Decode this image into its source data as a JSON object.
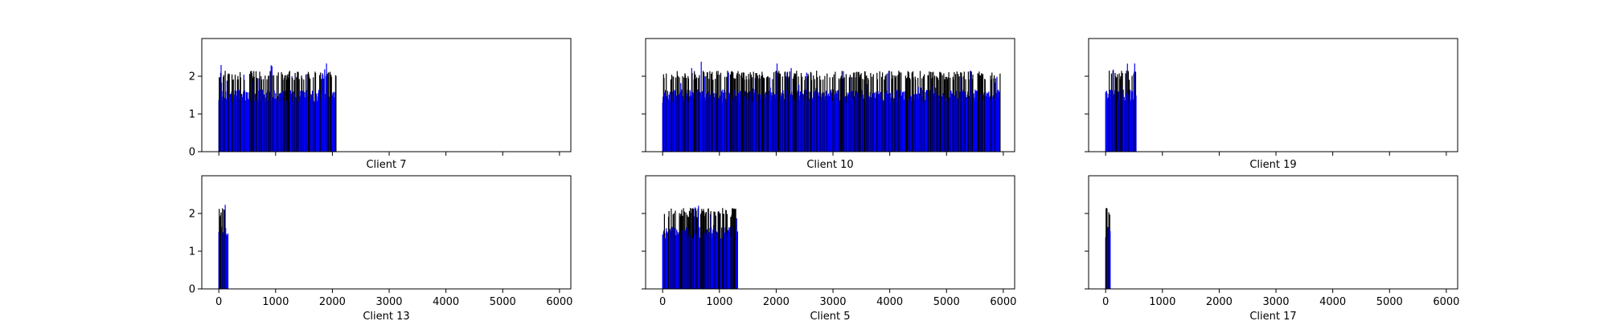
{
  "chart_data": [
    {
      "type": "bar",
      "title": "",
      "xlabel": "Client 7",
      "ylabel": "",
      "xlim": [
        -300,
        6200
      ],
      "ylim": [
        0,
        3
      ],
      "x_max": 2070,
      "series_colors": [
        "#000000",
        "#0000ff"
      ],
      "xticks": [
        0,
        1000,
        2000,
        3000,
        4000,
        5000,
        6000
      ],
      "yticks": [
        0,
        1,
        2
      ],
      "xtick_labels": [],
      "ytick_labels": [
        "0",
        "1",
        "2"
      ],
      "grid": false,
      "legend": "none"
    },
    {
      "type": "bar",
      "title": "",
      "xlabel": "Client 10",
      "ylabel": "",
      "xlim": [
        -300,
        6200
      ],
      "ylim": [
        0,
        3
      ],
      "x_max": 5950,
      "series_colors": [
        "#000000",
        "#0000ff"
      ],
      "xticks": [
        0,
        1000,
        2000,
        3000,
        4000,
        5000,
        6000
      ],
      "yticks": [
        0,
        1,
        2
      ],
      "xtick_labels": [],
      "ytick_labels": [],
      "grid": false,
      "legend": "none"
    },
    {
      "type": "bar",
      "title": "",
      "xlabel": "Client 19",
      "ylabel": "",
      "xlim": [
        -300,
        6200
      ],
      "ylim": [
        0,
        3
      ],
      "x_max": 540,
      "series_colors": [
        "#000000",
        "#0000ff"
      ],
      "xticks": [
        0,
        1000,
        2000,
        3000,
        4000,
        5000,
        6000
      ],
      "yticks": [
        0,
        1,
        2
      ],
      "xtick_labels": [],
      "ytick_labels": [],
      "grid": false,
      "legend": "none"
    },
    {
      "type": "bar",
      "title": "",
      "xlabel": "Client 13",
      "ylabel": "",
      "xlim": [
        -300,
        6200
      ],
      "ylim": [
        0,
        3
      ],
      "x_max": 160,
      "series_colors": [
        "#000000",
        "#0000ff"
      ],
      "xticks": [
        0,
        1000,
        2000,
        3000,
        4000,
        5000,
        6000
      ],
      "yticks": [
        0,
        1,
        2
      ],
      "xtick_labels": [
        "0",
        "1000",
        "2000",
        "3000",
        "4000",
        "5000",
        "6000"
      ],
      "ytick_labels": [
        "0",
        "1",
        "2"
      ],
      "grid": false,
      "legend": "none"
    },
    {
      "type": "bar",
      "title": "",
      "xlabel": "Client 5",
      "ylabel": "",
      "xlim": [
        -300,
        6200
      ],
      "ylim": [
        0,
        3
      ],
      "x_max": 1320,
      "series_colors": [
        "#000000",
        "#0000ff"
      ],
      "xticks": [
        0,
        1000,
        2000,
        3000,
        4000,
        5000,
        6000
      ],
      "yticks": [
        0,
        1,
        2
      ],
      "xtick_labels": [
        "0",
        "1000",
        "2000",
        "3000",
        "4000",
        "5000",
        "6000"
      ],
      "ytick_labels": [],
      "grid": false,
      "legend": "none"
    },
    {
      "type": "bar",
      "title": "",
      "xlabel": "Client 17",
      "ylabel": "",
      "xlim": [
        -300,
        6200
      ],
      "ylim": [
        0,
        3
      ],
      "x_max": 80,
      "series_colors": [
        "#000000",
        "#0000ff"
      ],
      "xticks": [
        0,
        1000,
        2000,
        3000,
        4000,
        5000,
        6000
      ],
      "yticks": [
        0,
        1,
        2
      ],
      "xtick_labels": [
        "0",
        "1000",
        "2000",
        "3000",
        "4000",
        "5000",
        "6000"
      ],
      "ytick_labels": [],
      "grid": false,
      "legend": "none"
    }
  ]
}
